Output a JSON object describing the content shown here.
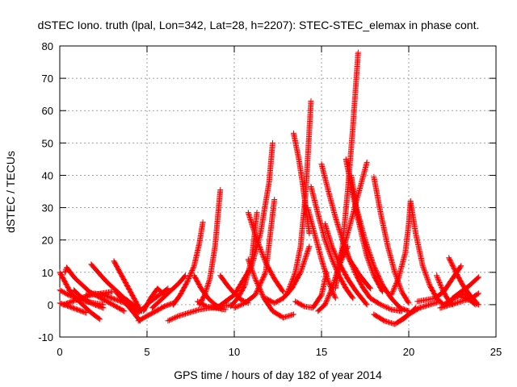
{
  "chart_data": {
    "type": "scatter",
    "title": "dSTEC Iono. truth (lpal, Lon=342, Lat=28, h=2207): STEC-STEC_elemax in phase cont.",
    "xlabel": "GPS time / hours of day 182 of year 2014",
    "ylabel": "dSTEC  / TECUs",
    "xlim": [
      0,
      25
    ],
    "ylim": [
      -10,
      80
    ],
    "xticks": [
      0,
      5,
      10,
      15,
      20,
      25
    ],
    "yticks": [
      -10,
      0,
      10,
      20,
      30,
      40,
      50,
      60,
      70,
      80
    ],
    "grid": true,
    "marker": "+",
    "color": "#ff0000",
    "series": [
      {
        "x": [
          0.0,
          0.3,
          0.6,
          1.0,
          1.4,
          1.8,
          2.3
        ],
        "y": [
          10.0,
          7.0,
          4.0,
          1.5,
          -0.5,
          -2.5,
          -4.5
        ]
      },
      {
        "x": [
          0.0,
          0.5,
          1.0,
          1.5,
          2.0,
          2.5
        ],
        "y": [
          4.5,
          3.0,
          2.0,
          1.0,
          0.5,
          0.0
        ]
      },
      {
        "x": [
          0.0,
          0.5,
          1.0,
          1.5
        ],
        "y": [
          0.5,
          -0.5,
          -1.5,
          -2.5
        ]
      },
      {
        "x": [
          0.2,
          0.7,
          1.2,
          1.8,
          2.4,
          3.0
        ],
        "y": [
          0.0,
          1.0,
          2.0,
          3.0,
          3.5,
          4.0
        ]
      },
      {
        "x": [
          0.3,
          0.4,
          0.6,
          0.9,
          1.3,
          1.7,
          2.2,
          2.7,
          3.2,
          3.7
        ],
        "y": [
          10.0,
          11.5,
          10.0,
          8.0,
          6.0,
          4.0,
          2.5,
          1.0,
          -0.5,
          -2.0
        ]
      },
      {
        "x": [
          0.8,
          1.2,
          1.6,
          2.0,
          2.5
        ],
        "y": [
          4.5,
          2.5,
          1.0,
          0.0,
          -1.0
        ]
      },
      {
        "x": [
          1.8,
          2.2,
          2.7,
          3.2,
          3.7,
          4.2,
          4.7
        ],
        "y": [
          12.5,
          10.0,
          7.0,
          4.5,
          2.0,
          0.0,
          -2.0
        ]
      },
      {
        "x": [
          1.5,
          2.0,
          2.5,
          3.0,
          3.5,
          4.0
        ],
        "y": [
          3.0,
          3.5,
          3.0,
          2.0,
          1.0,
          0.0
        ]
      },
      {
        "x": [
          3.1,
          3.4,
          3.7,
          4.0,
          4.3,
          4.6
        ],
        "y": [
          13.5,
          10.5,
          7.5,
          4.5,
          1.5,
          -1.5
        ]
      },
      {
        "x": [
          3.2,
          3.6,
          4.0,
          4.3,
          4.6
        ],
        "y": [
          4.0,
          1.5,
          -1.0,
          -3.0,
          -5.0
        ]
      },
      {
        "x": [
          3.8,
          4.2,
          4.5,
          4.8,
          5.2,
          5.7,
          6.2
        ],
        "y": [
          1.5,
          -1.0,
          -2.5,
          -1.0,
          1.0,
          3.0,
          5.0
        ]
      },
      {
        "x": [
          4.5,
          5.0,
          5.5,
          6.0,
          6.5
        ],
        "y": [
          -5.0,
          -3.5,
          -2.0,
          -0.5,
          0.5
        ]
      },
      {
        "x": [
          4.8,
          5.2,
          5.6,
          6.0
        ],
        "y": [
          -2.0,
          2.0,
          5.0,
          3.0
        ]
      },
      {
        "x": [
          5.3,
          5.8,
          6.3,
          6.8,
          7.2
        ],
        "y": [
          -1.0,
          1.5,
          4.0,
          6.5,
          9.0
        ]
      },
      {
        "x": [
          6.2,
          6.8,
          7.4,
          8.0,
          8.6,
          9.2,
          10.0
        ],
        "y": [
          -5.0,
          -3.5,
          -2.5,
          -1.5,
          -1.0,
          -0.5,
          0.0
        ]
      },
      {
        "x": [
          7.7,
          8.1,
          8.5,
          8.9,
          9.3
        ],
        "y": [
          9.0,
          5.0,
          2.0,
          0.0,
          -1.5
        ]
      },
      {
        "x": [
          7.9,
          8.4,
          8.9,
          9.5
        ],
        "y": [
          1.0,
          -0.5,
          -1.0,
          -1.5
        ]
      },
      {
        "x": [
          6.5,
          6.9,
          7.3,
          7.7,
          8.0,
          8.2
        ],
        "y": [
          0.0,
          3.0,
          7.0,
          12.0,
          19.0,
          25.5
        ]
      },
      {
        "x": [
          8.0,
          8.3,
          8.6,
          8.9,
          9.2
        ],
        "y": [
          0.0,
          3.0,
          8.0,
          18.0,
          35.5
        ]
      },
      {
        "x": [
          9.2,
          9.6,
          10.0,
          10.4,
          10.8
        ],
        "y": [
          9.0,
          6.0,
          3.5,
          1.5,
          0.5
        ]
      },
      {
        "x": [
          9.8,
          10.2,
          10.6,
          11.0,
          11.3
        ],
        "y": [
          -0.5,
          2.0,
          6.0,
          14.0,
          28.5
        ]
      },
      {
        "x": [
          9.0,
          10.0,
          11.0,
          11.5,
          12.0,
          12.2
        ],
        "y": [
          -1.0,
          3.0,
          12.0,
          22.0,
          38.0,
          50.0
        ]
      },
      {
        "x": [
          10.8,
          11.3,
          11.8,
          12.3,
          12.8
        ],
        "y": [
          28.5,
          20.0,
          13.0,
          8.0,
          4.0
        ]
      },
      {
        "x": [
          10.8,
          11.2,
          11.7,
          12.2,
          12.8,
          13.4
        ],
        "y": [
          14.0,
          8.0,
          2.0,
          -2.0,
          -4.0,
          -3.0
        ]
      },
      {
        "x": [
          10.0,
          10.6,
          11.2,
          11.8,
          12.3
        ],
        "y": [
          -1.0,
          0.5,
          3.0,
          10.0,
          32.5
        ]
      },
      {
        "x": [
          11.8,
          12.3,
          12.8,
          13.3,
          13.8,
          14.3
        ],
        "y": [
          2.0,
          0.5,
          2.0,
          5.0,
          10.0,
          18.0
        ]
      },
      {
        "x": [
          13.4,
          13.7,
          13.9,
          14.1,
          14.3
        ],
        "y": [
          53.0,
          45.0,
          38.0,
          30.0,
          22.0
        ]
      },
      {
        "x": [
          13.0,
          13.5,
          13.8,
          14.1,
          14.4
        ],
        "y": [
          3.0,
          10.0,
          18.0,
          35.0,
          63.0
        ]
      },
      {
        "x": [
          14.4,
          14.8,
          15.2,
          15.6,
          16.0,
          16.4,
          16.8
        ],
        "y": [
          36.5,
          28.0,
          20.0,
          14.0,
          9.0,
          5.0,
          2.0
        ]
      },
      {
        "x": [
          13.5,
          14.0,
          14.5,
          15.0,
          15.3
        ],
        "y": [
          1.0,
          -0.5,
          -1.0,
          3.0,
          10.0
        ]
      },
      {
        "x": [
          14.2,
          14.6,
          15.0,
          15.4,
          15.8
        ],
        "y": [
          30.0,
          22.0,
          14.0,
          7.0,
          2.0
        ]
      },
      {
        "x": [
          15.0,
          15.4,
          15.8,
          16.2,
          16.6,
          17.2,
          17.8
        ],
        "y": [
          43.5,
          35.0,
          27.0,
          20.0,
          14.0,
          9.0,
          5.0
        ]
      },
      {
        "x": [
          15.2,
          15.6,
          16.0,
          16.5,
          17.0,
          17.6
        ],
        "y": [
          25.0,
          18.0,
          13.0,
          8.0,
          4.0,
          0.0
        ]
      },
      {
        "x": [
          14.8,
          15.2,
          15.6,
          16.0,
          16.5
        ],
        "y": [
          -2.0,
          0.0,
          5.0,
          12.0,
          18.0
        ]
      },
      {
        "x": [
          16.4,
          16.8,
          17.2,
          17.6,
          18.0,
          18.5
        ],
        "y": [
          45.0,
          34.0,
          24.0,
          15.0,
          9.0,
          4.0
        ]
      },
      {
        "x": [
          16.7,
          17.0,
          17.5,
          18.0,
          18.5,
          19.0,
          19.5,
          20.0
        ],
        "y": [
          40.0,
          30.0,
          20.0,
          12.0,
          6.0,
          2.0,
          -1.0,
          -2.0
        ]
      },
      {
        "x": [
          15.8,
          16.2,
          16.5,
          16.8,
          17.1
        ],
        "y": [
          5.0,
          18.0,
          35.0,
          55.0,
          78.0
        ]
      },
      {
        "x": [
          16.0,
          16.4,
          16.8,
          17.2,
          17.6
        ],
        "y": [
          13.0,
          20.0,
          28.0,
          36.0,
          44.0
        ]
      },
      {
        "x": [
          16.2,
          16.6,
          17.0,
          17.4,
          17.8,
          18.4,
          19.0,
          19.6
        ],
        "y": [
          20.0,
          14.0,
          9.0,
          5.0,
          2.0,
          0.0,
          -1.5,
          -2.0
        ]
      },
      {
        "x": [
          18.0,
          18.4,
          18.8,
          19.2,
          19.6,
          20.0
        ],
        "y": [
          39.5,
          28.0,
          18.0,
          10.0,
          4.0,
          0.5
        ]
      },
      {
        "x": [
          18.0,
          18.6,
          19.2,
          19.8,
          20.4
        ],
        "y": [
          -3.0,
          -5.0,
          -6.0,
          -4.0,
          -1.0
        ]
      },
      {
        "x": [
          19.0,
          19.4,
          19.8,
          20.0,
          20.1
        ],
        "y": [
          3.0,
          8.0,
          16.0,
          25.0,
          32.0
        ]
      },
      {
        "x": [
          20.1,
          20.4,
          20.8,
          21.2,
          21.6,
          22.0
        ],
        "y": [
          32.0,
          22.0,
          12.0,
          6.0,
          2.0,
          0.0
        ]
      },
      {
        "x": [
          19.5,
          20.0,
          20.6,
          21.2,
          21.8
        ],
        "y": [
          -5.0,
          -3.0,
          -1.0,
          0.0,
          1.0
        ]
      },
      {
        "x": [
          20.5,
          21.0,
          21.5,
          22.0,
          22.5,
          23.0
        ],
        "y": [
          1.0,
          1.5,
          2.0,
          4.0,
          8.0,
          12.0
        ]
      },
      {
        "x": [
          21.6,
          21.9,
          22.2,
          22.5
        ],
        "y": [
          9.0,
          5.0,
          2.0,
          0.0
        ]
      },
      {
        "x": [
          22.3,
          22.7,
          23.1,
          23.5,
          23.9
        ],
        "y": [
          14.5,
          10.0,
          6.0,
          3.0,
          0.5
        ]
      },
      {
        "x": [
          22.5,
          23.0,
          23.5,
          24.0
        ],
        "y": [
          2.0,
          4.0,
          6.0,
          8.5
        ]
      },
      {
        "x": [
          21.8,
          22.4,
          23.0,
          23.6,
          24.0
        ],
        "y": [
          -1.0,
          0.0,
          1.0,
          2.0,
          3.5
        ]
      },
      {
        "x": [
          22.0,
          22.6,
          23.2,
          23.8
        ],
        "y": [
          0.0,
          2.0,
          3.5,
          0.0
        ]
      },
      {
        "x": [
          23.0,
          23.4,
          23.8,
          24.0
        ],
        "y": [
          2.5,
          1.5,
          0.5,
          0.0
        ]
      }
    ]
  }
}
